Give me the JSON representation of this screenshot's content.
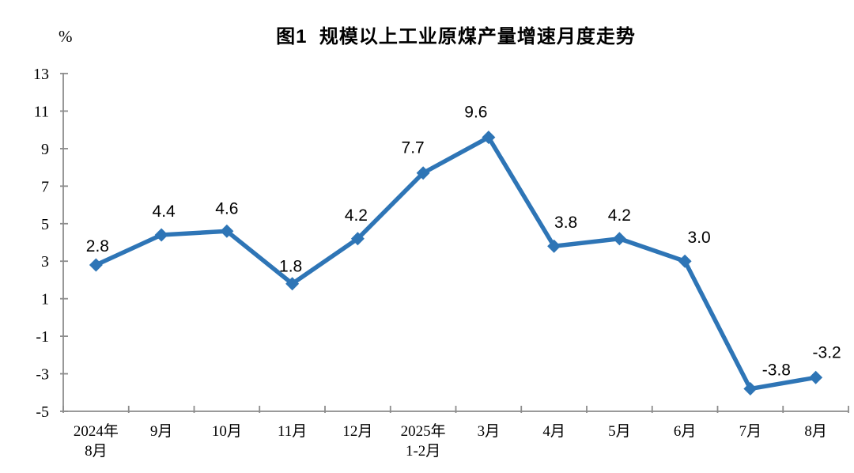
{
  "page": {
    "background_color": "#ffffff"
  },
  "chart_data": {
    "type": "line",
    "title": "图1  规模以上工业原煤产量增速月度走势",
    "unit_label": "%",
    "categories": [
      "2024年\n8月",
      "9月",
      "10月",
      "11月",
      "12月",
      "2025年\n1-2月",
      "3月",
      "4月",
      "5月",
      "6月",
      "7月",
      "8月"
    ],
    "series": [
      {
        "name": "规模以上工业原煤产量增速",
        "values": [
          2.8,
          4.4,
          4.6,
          1.8,
          4.2,
          7.7,
          9.6,
          3.8,
          4.2,
          3.0,
          -3.8,
          -3.2
        ],
        "data_labels": [
          "2.8",
          "4.4",
          "4.6",
          "1.8",
          "4.2",
          "7.7",
          "9.6",
          "3.8",
          "4.2",
          "3.0",
          "-3.8",
          "-3.2"
        ]
      }
    ],
    "ylim": [
      -5,
      13
    ],
    "ytick_step": 2,
    "yticks": [
      13,
      11,
      9,
      7,
      5,
      3,
      1,
      -1,
      -3,
      -5
    ],
    "xlabel": "",
    "ylabel": "%",
    "grid": false,
    "legend_position": "none",
    "marker": "diamond",
    "line_color": "#2E75B6",
    "axis_color": "#8C8C8C",
    "text_color": "#000000"
  }
}
